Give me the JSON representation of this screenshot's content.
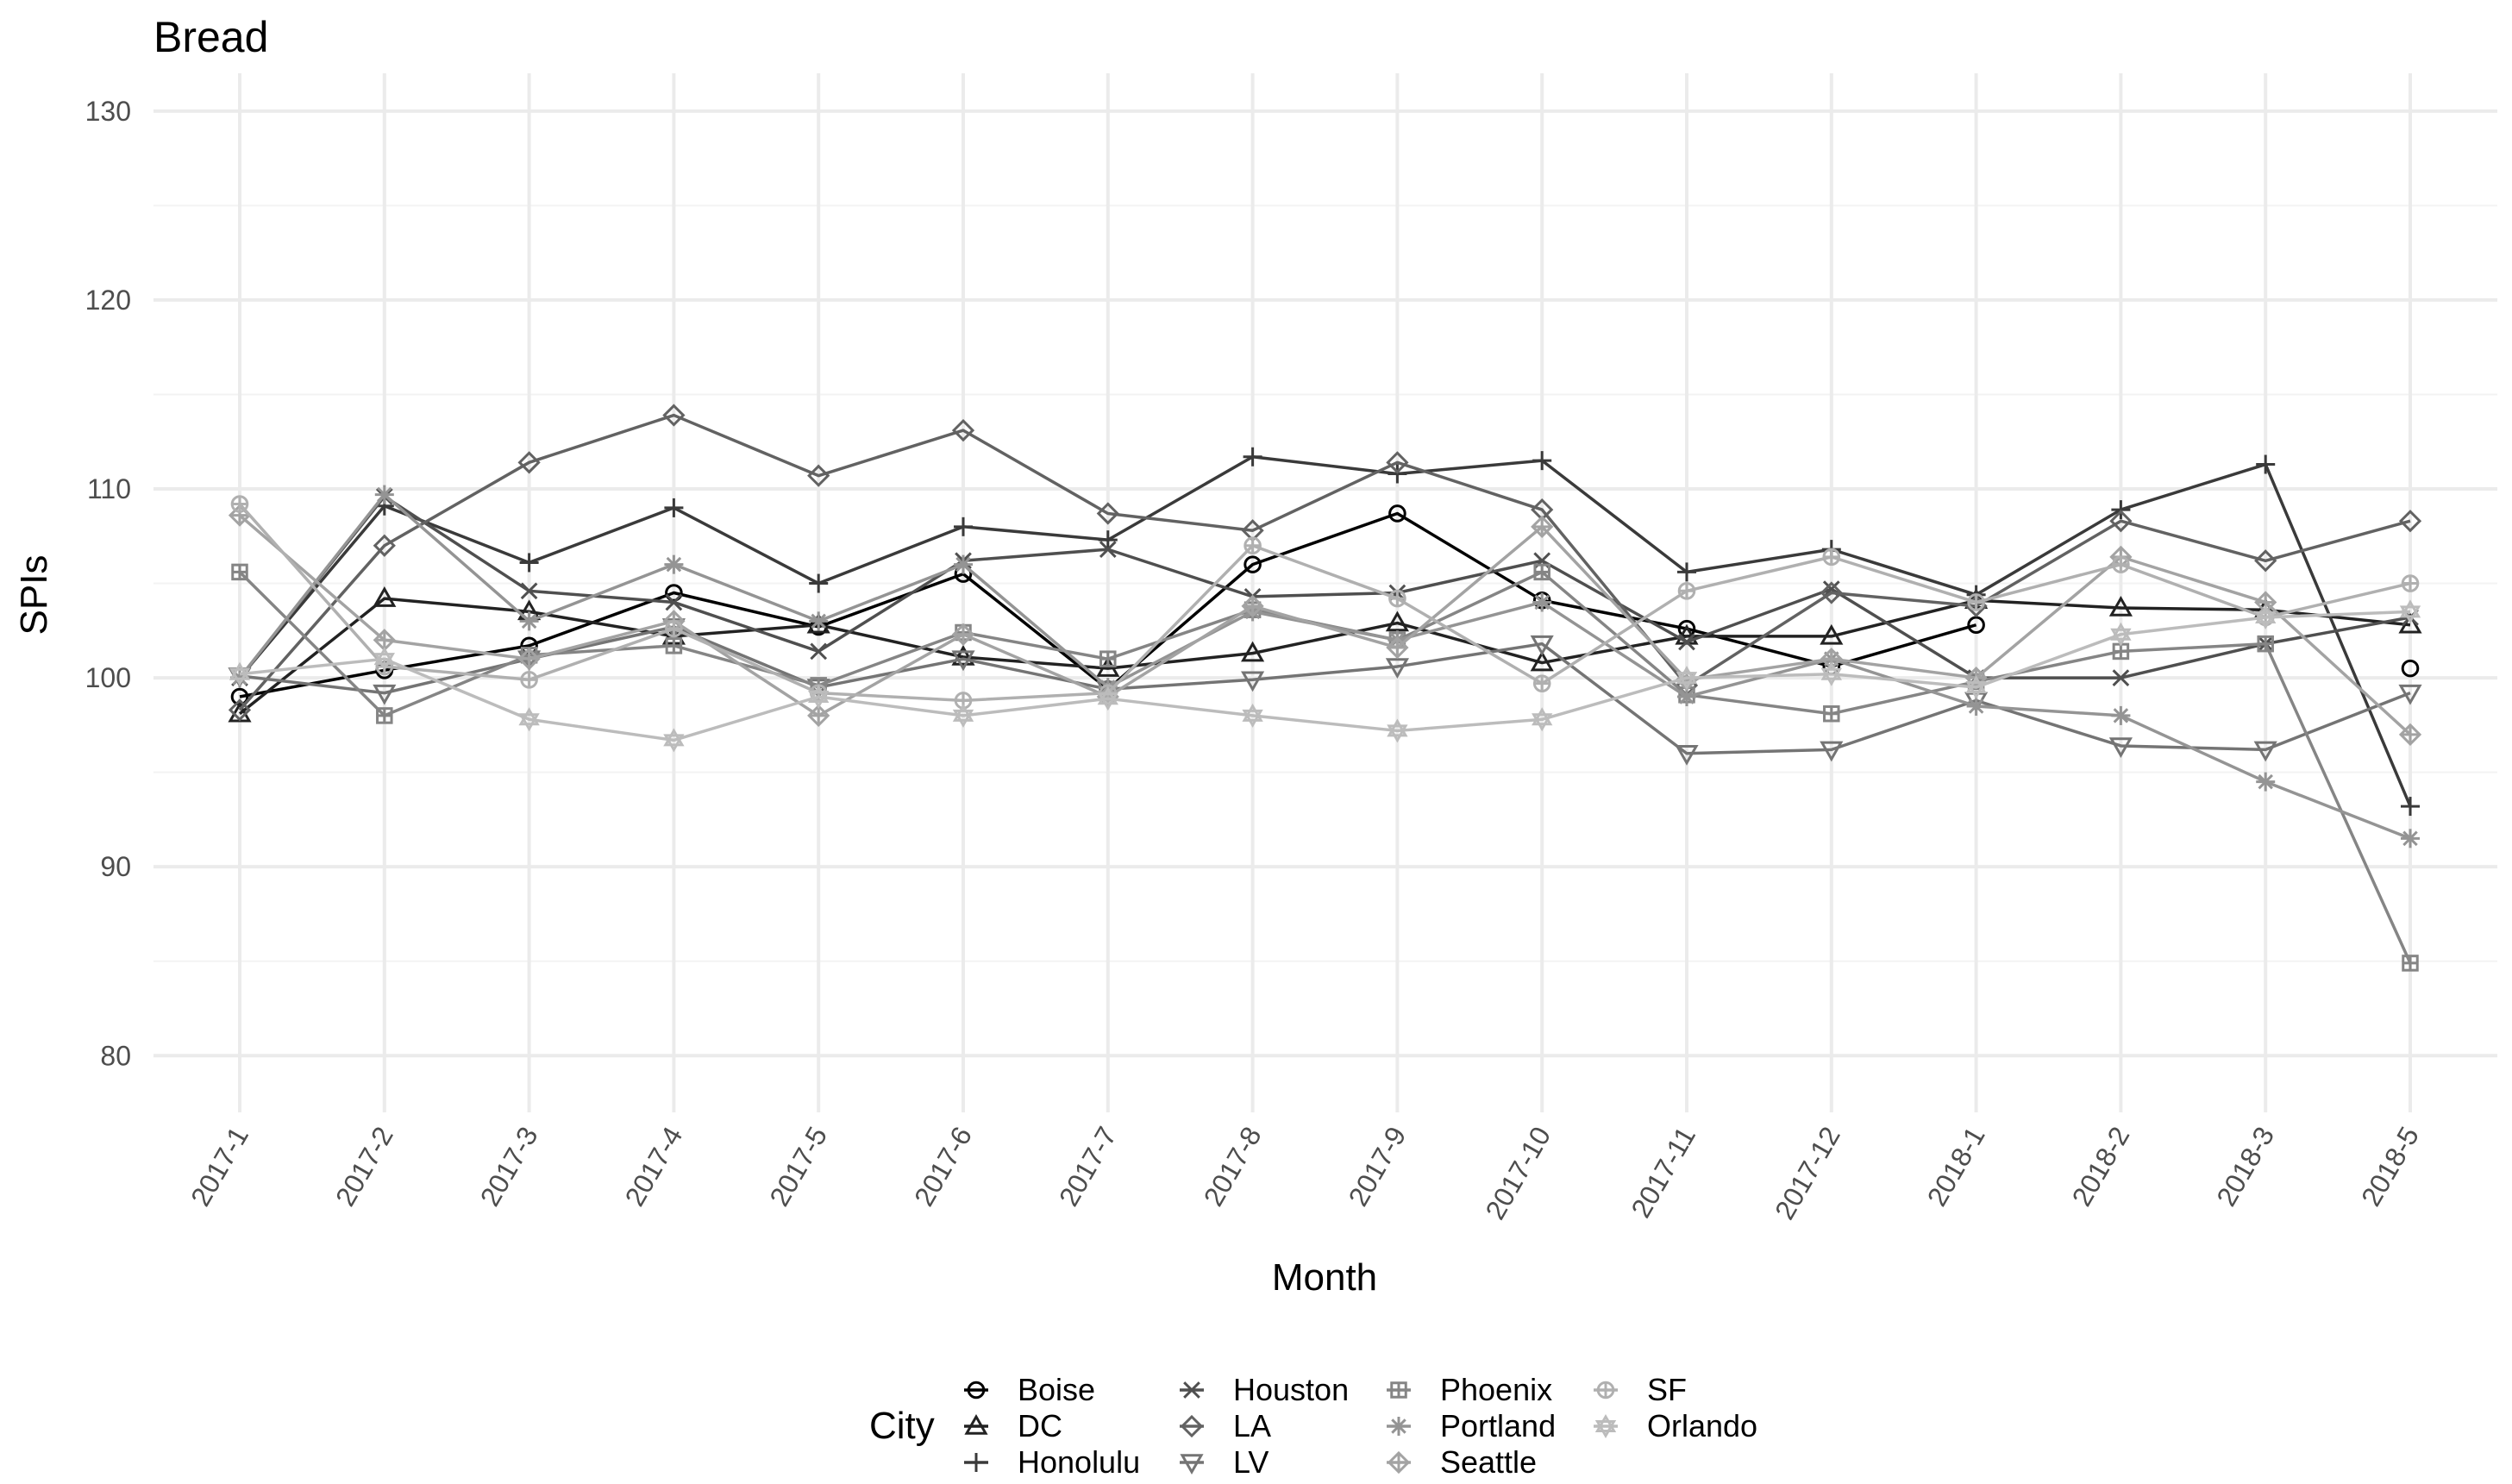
{
  "chart_data": {
    "type": "line",
    "title": "Bread",
    "xlabel": "Month",
    "ylabel": "SPIs",
    "ylim": [
      77,
      132
    ],
    "yticks": [
      80,
      90,
      100,
      110,
      120,
      130
    ],
    "categories": [
      "2017-1",
      "2017-2",
      "2017-3",
      "2017-4",
      "2017-5",
      "2017-6",
      "2017-7",
      "2017-8",
      "2017-9",
      "2017-10",
      "2017-11",
      "2017-12",
      "2018-1",
      "2018-2",
      "2018-3",
      "2018-5"
    ],
    "legend_title": "City",
    "legend_position": "bottom",
    "series": [
      {
        "name": "Boise",
        "color": "#000000",
        "shape": "circle",
        "values": [
          99.0,
          100.4,
          101.7,
          104.5,
          102.7,
          105.5,
          99.4,
          106.0,
          108.7,
          104.1,
          102.6,
          100.6,
          102.8,
          null,
          null,
          100.5
        ]
      },
      {
        "name": "DC",
        "color": "#222222",
        "shape": "triangle",
        "values": [
          98.1,
          104.2,
          103.5,
          102.2,
          102.8,
          101.1,
          100.5,
          101.3,
          102.9,
          100.8,
          102.2,
          102.2,
          104.1,
          103.7,
          103.6,
          102.8
        ]
      },
      {
        "name": "Honolulu",
        "color": "#3a3a3a",
        "shape": "plus",
        "values": [
          100.0,
          109.1,
          106.1,
          109.0,
          105.0,
          108.0,
          107.3,
          111.7,
          110.8,
          111.5,
          105.6,
          106.8,
          104.4,
          108.9,
          111.3,
          93.2
        ]
      },
      {
        "name": "Houston",
        "color": "#4f4f4f",
        "shape": "x",
        "values": [
          100.0,
          109.6,
          104.6,
          104.0,
          101.4,
          106.2,
          106.8,
          104.3,
          104.5,
          106.2,
          101.9,
          104.7,
          100.0,
          100.0,
          101.8,
          103.2
        ]
      },
      {
        "name": "LA",
        "color": "#626262",
        "shape": "diamond",
        "values": [
          98.3,
          107.0,
          111.4,
          113.9,
          110.7,
          113.1,
          108.7,
          107.8,
          111.4,
          108.9,
          99.6,
          104.5,
          103.8,
          108.3,
          106.2,
          108.3
        ]
      },
      {
        "name": "LV",
        "color": "#747474",
        "shape": "triangle-down",
        "values": [
          100.1,
          99.2,
          101.0,
          102.7,
          99.5,
          101.0,
          99.4,
          99.9,
          100.6,
          101.8,
          96.0,
          96.2,
          98.8,
          96.4,
          96.2,
          99.2
        ]
      },
      {
        "name": "Phoenix",
        "color": "#858585",
        "shape": "square-cross",
        "values": [
          105.6,
          98.0,
          101.2,
          101.7,
          99.6,
          102.4,
          101.0,
          103.6,
          102.0,
          105.6,
          99.1,
          98.1,
          99.8,
          101.4,
          101.8,
          84.9
        ]
      },
      {
        "name": "Portland",
        "color": "#949494",
        "shape": "asterisk",
        "values": [
          100.0,
          109.7,
          103.0,
          106.0,
          103.0,
          106.0,
          99.5,
          103.5,
          102.0,
          104.0,
          99.0,
          101.0,
          98.5,
          98.0,
          94.5,
          91.5
        ]
      },
      {
        "name": "Seattle",
        "color": "#a3a3a3",
        "shape": "diamond-plus",
        "values": [
          108.6,
          102.0,
          101.0,
          103.0,
          98.0,
          102.3,
          99.0,
          103.8,
          101.6,
          108.0,
          99.9,
          101.0,
          100.0,
          106.4,
          104.0,
          97.0
        ]
      },
      {
        "name": "SF",
        "color": "#b0b0b0",
        "shape": "circle-plus",
        "values": [
          109.2,
          100.6,
          99.9,
          102.6,
          99.2,
          98.8,
          99.2,
          107.0,
          104.2,
          99.7,
          104.6,
          106.4,
          104.0,
          106.0,
          103.2,
          105.0
        ]
      },
      {
        "name": "Orlando",
        "color": "#bcbcbc",
        "shape": "star",
        "values": [
          100.2,
          101.0,
          97.8,
          96.7,
          99.0,
          98.0,
          98.9,
          98.0,
          97.2,
          97.8,
          100.0,
          100.2,
          99.5,
          102.3,
          103.2,
          103.5
        ]
      }
    ]
  }
}
